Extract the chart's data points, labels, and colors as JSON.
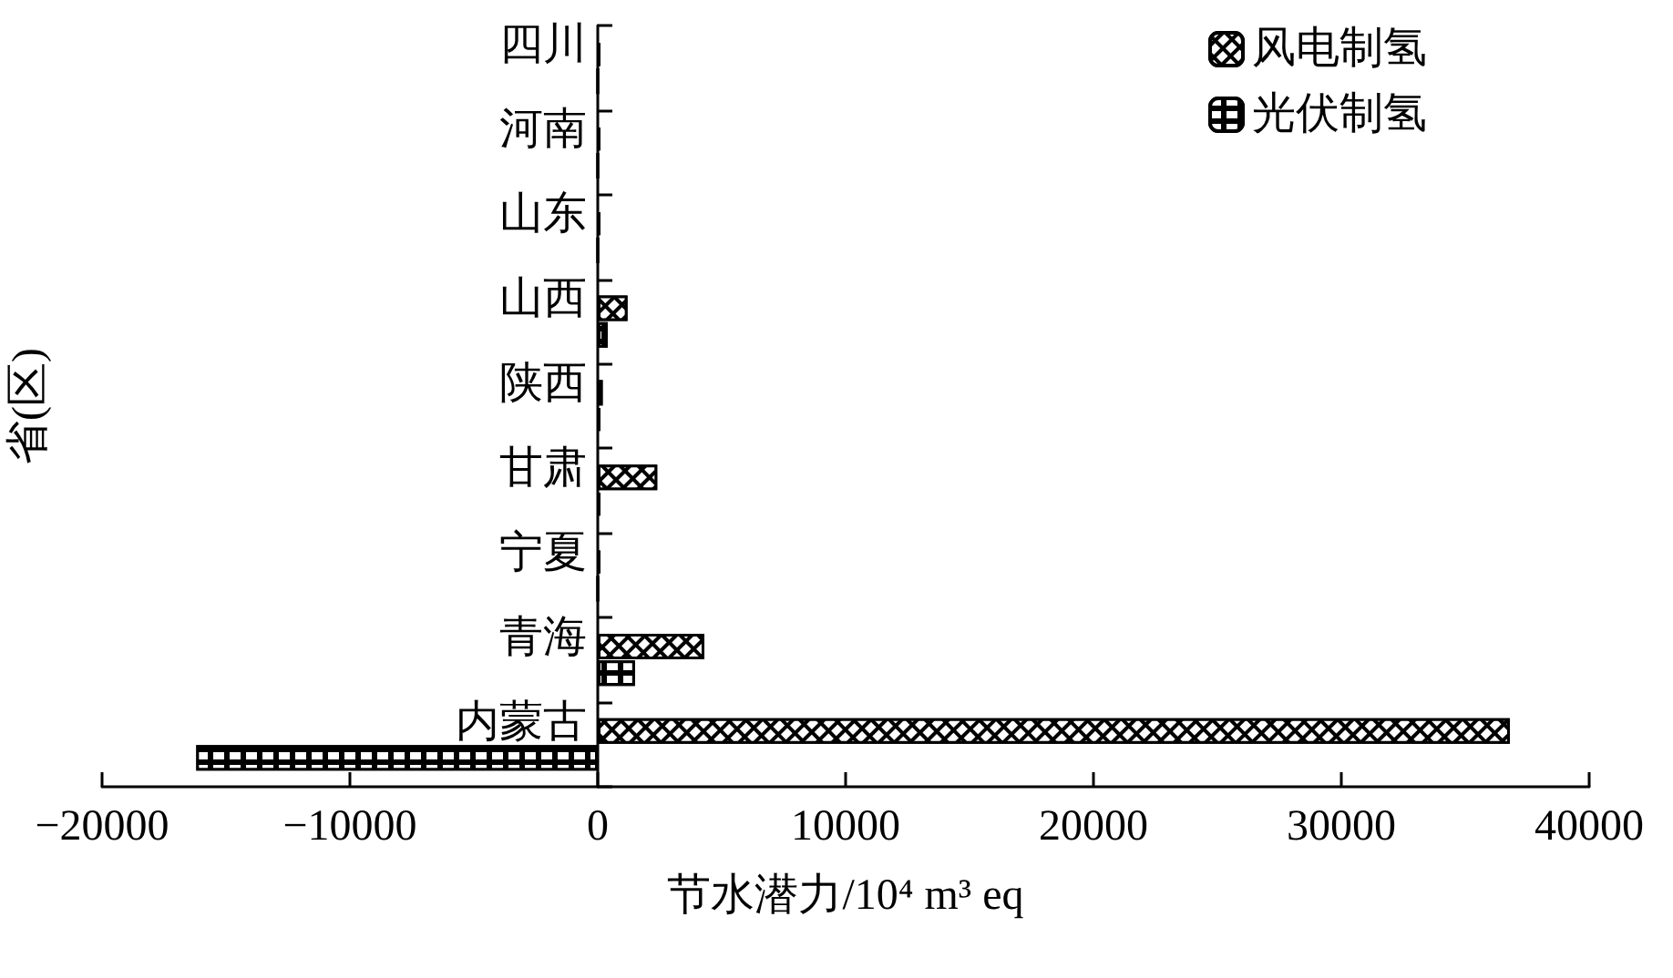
{
  "chart_data": {
    "type": "bar",
    "orientation": "horizontal",
    "categories": [
      "四川",
      "河南",
      "山东",
      "山西",
      "陕西",
      "甘肃",
      "宁夏",
      "青海",
      "内蒙古"
    ],
    "series": [
      {
        "name": "风电制氢",
        "color": "#000000",
        "values": [
          100,
          100,
          100,
          1200,
          200,
          2400,
          100,
          4300,
          36800
        ]
      },
      {
        "name": "光伏制氢",
        "color": "#000000",
        "values": [
          0,
          0,
          0,
          400,
          100,
          100,
          0,
          1500,
          -16200
        ]
      }
    ],
    "xlabel": "节水潜力/10⁴ m³ eq",
    "ylabel": "省(区)",
    "xlim": [
      -20000,
      40000
    ],
    "xticks": [
      -20000,
      -10000,
      0,
      10000,
      20000,
      30000,
      40000
    ],
    "grid": false,
    "legend": "top right"
  }
}
